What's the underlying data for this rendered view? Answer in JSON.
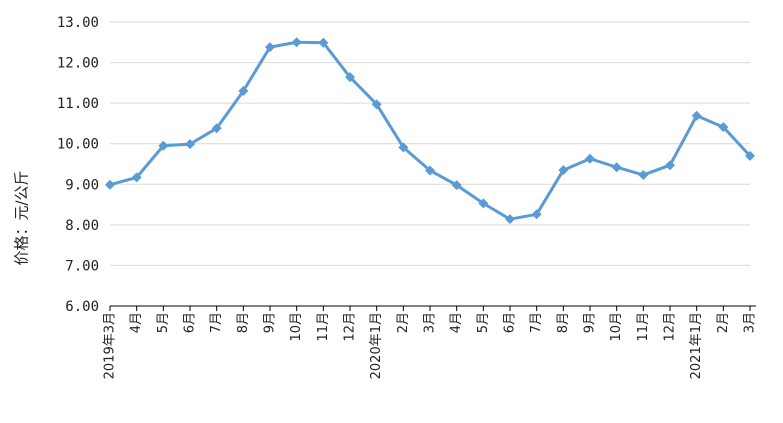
{
  "chart_data": {
    "type": "line",
    "title": "",
    "xlabel": "",
    "ylabel": "价格：元/公斤",
    "ylim": [
      6.0,
      13.0
    ],
    "yticks": [
      "6.00",
      "7.00",
      "8.00",
      "9.00",
      "10.00",
      "11.00",
      "12.00",
      "13.00"
    ],
    "grid": true,
    "legend": "none",
    "categories": [
      "2019年3月",
      "4月",
      "5月",
      "6月",
      "7月",
      "8月",
      "9月",
      "10月",
      "11月",
      "12月",
      "2020年1月",
      "2月",
      "3月",
      "4月",
      "5月",
      "6月",
      "7月",
      "8月",
      "9月",
      "10月",
      "11月",
      "12月",
      "2021年1月",
      "2月",
      "3月"
    ],
    "series": [
      {
        "values": [
          8.99,
          9.17,
          9.95,
          9.99,
          10.38,
          11.3,
          12.38,
          12.5,
          12.49,
          11.64,
          10.97,
          9.91,
          9.34,
          8.98,
          8.53,
          8.14,
          8.26,
          9.35,
          9.63,
          9.42,
          9.23,
          9.47,
          10.69,
          10.41,
          9.7
        ],
        "color": "#5b9bd5"
      }
    ]
  }
}
